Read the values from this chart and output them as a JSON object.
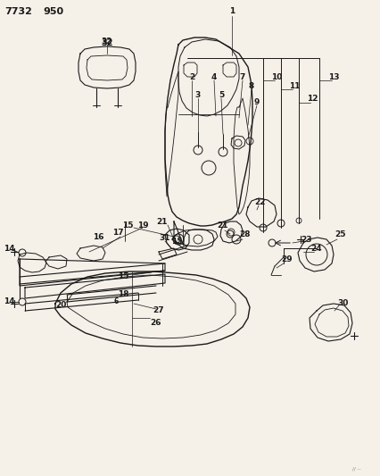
{
  "bg_color": "#f5f0e8",
  "line_color": "#1a1a1a",
  "title1": "7732",
  "title2": "950",
  "fig_width": 4.27,
  "fig_height": 5.33,
  "dpi": 100
}
